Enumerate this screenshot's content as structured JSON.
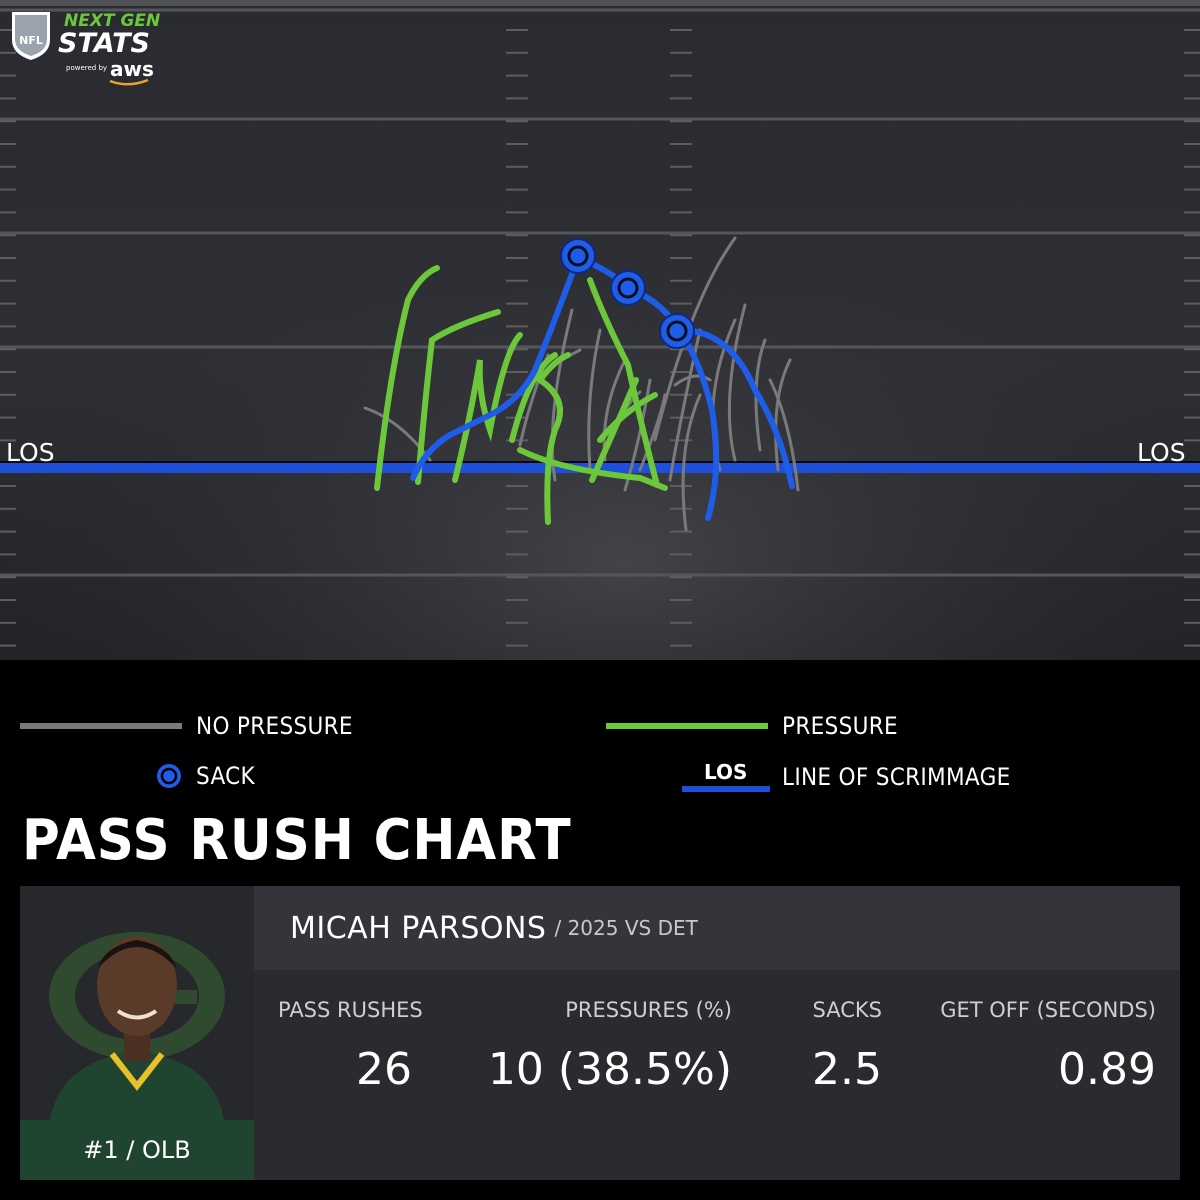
{
  "brand": {
    "line1": "NEXT GEN",
    "line2": "STATS",
    "powered": "powered by",
    "aws": "aws",
    "nfl": "NFL"
  },
  "field": {
    "los_left": "LOS",
    "los_right": "LOS"
  },
  "legend": {
    "no_pressure": "NO PRESSURE",
    "pressure": "PRESSURE",
    "sack": "SACK",
    "los_badge": "LOS",
    "line_of_scrimmage": "LINE OF SCRIMMAGE"
  },
  "colors": {
    "no_pressure": "#7a7a7a",
    "pressure": "#6cc83a",
    "sack": "#1f5ce8",
    "los": "#1f4fd8",
    "team_green": "#1f4530"
  },
  "title": "PASS RUSH CHART",
  "player": {
    "name": "MICAH PARSONS",
    "subtitle": "/ 2025 VS DET",
    "number_pos": "#1 / OLB",
    "photo_icon": "player-headshot"
  },
  "stats": [
    {
      "label": "PASS RUSHES",
      "value": "26"
    },
    {
      "label": "PRESSURES (%)",
      "value": "10 (38.5%)"
    },
    {
      "label": "SACKS",
      "value": "2.5"
    },
    {
      "label": "GET OFF (SECONDS)",
      "value": "0.89"
    }
  ],
  "chart_data": {
    "type": "scatter",
    "title": "PASS RUSH CHART",
    "series": [
      {
        "name": "NO PRESSURE",
        "count": 16
      },
      {
        "name": "PRESSURE",
        "count": 7
      },
      {
        "name": "SACK",
        "count": 3
      }
    ]
  }
}
